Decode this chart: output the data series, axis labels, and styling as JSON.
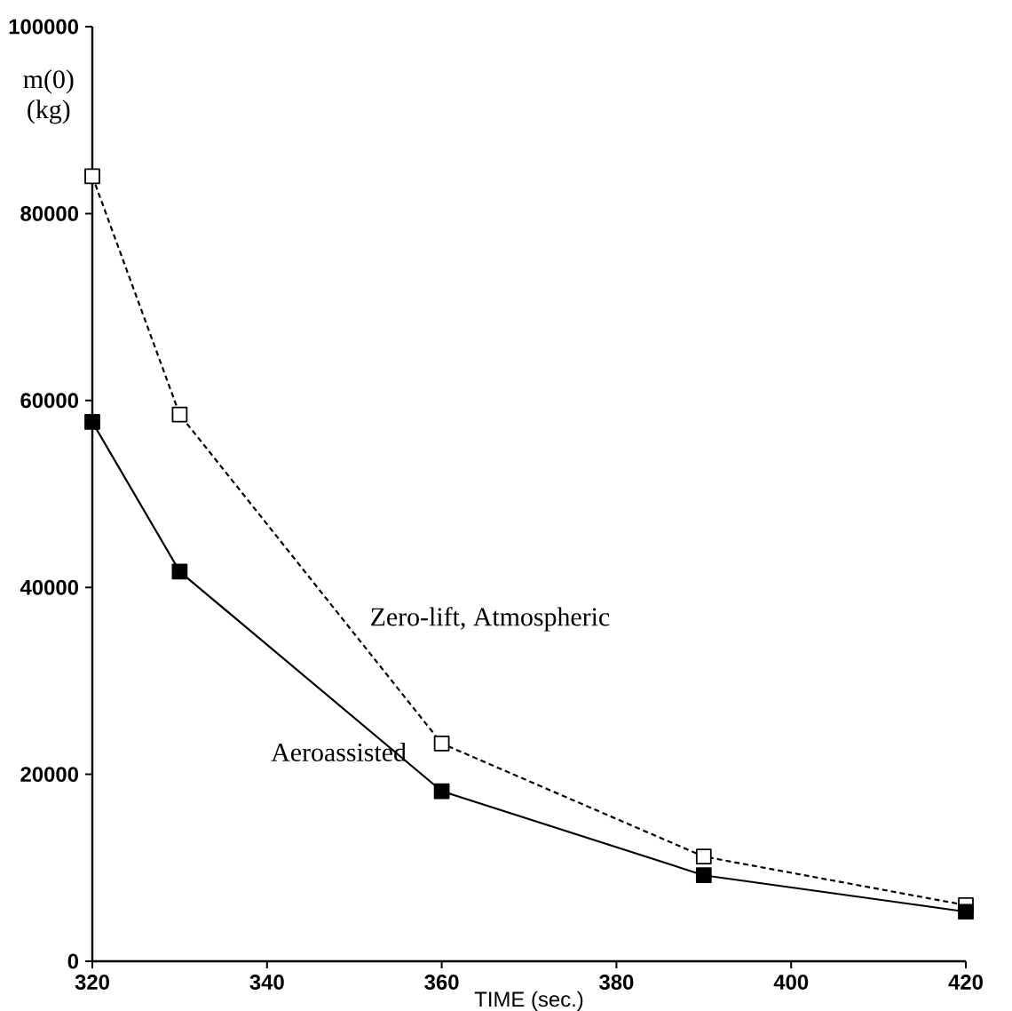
{
  "chart_data": {
    "type": "line",
    "xlabel": "TIME (sec.)",
    "ylabel": "m(0)\n(kg)",
    "x": [
      320,
      330,
      360,
      390,
      420
    ],
    "series": [
      {
        "name": "Zero-lift, Atmospheric",
        "color": "#000000",
        "values": [
          84000,
          58500,
          23300,
          11200,
          6000
        ],
        "line_style": "dashed"
      },
      {
        "name": "Aeroassisted",
        "color": "#000000",
        "values": [
          57700,
          41700,
          18200,
          9200,
          5300
        ],
        "line_style": "solid"
      }
    ],
    "xlim": [
      320,
      420
    ],
    "ylim": [
      0,
      100000
    ],
    "xticks": [
      320,
      340,
      360,
      380,
      400,
      420
    ],
    "yticks": [
      0,
      20000,
      40000,
      60000,
      80000,
      100000
    ],
    "marker": "square",
    "grid": false
  }
}
